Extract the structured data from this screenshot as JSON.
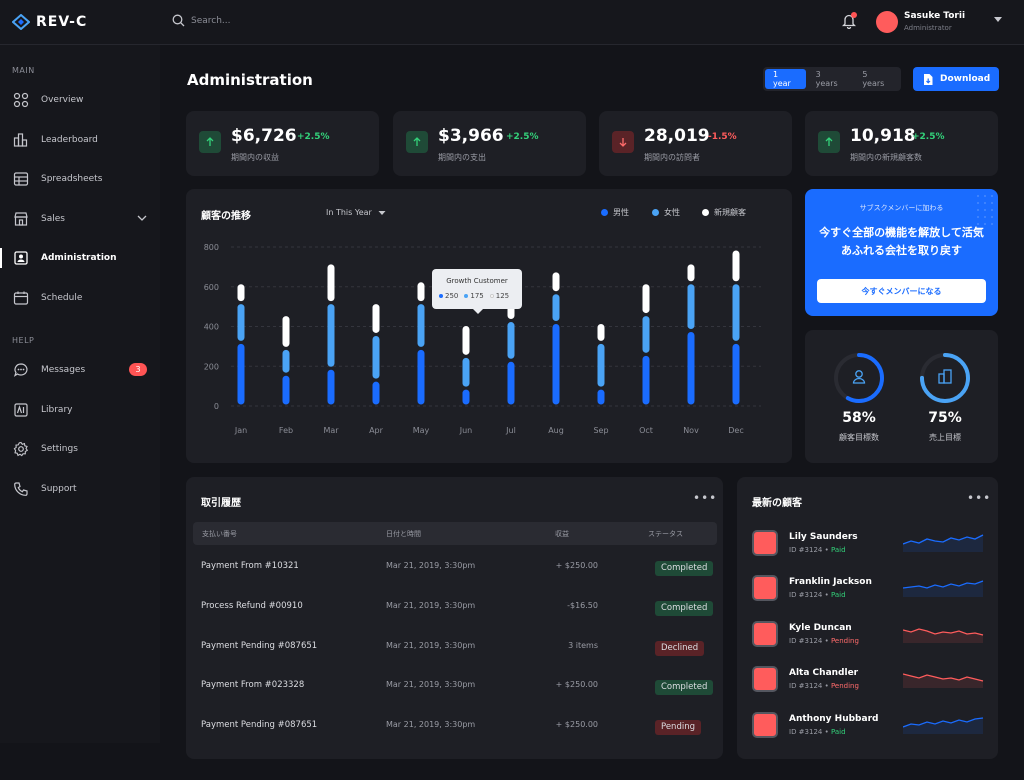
{
  "app": {
    "name": "REV-C"
  },
  "search": {
    "placeholder": "Search..."
  },
  "user": {
    "name": "Sasuke Torii",
    "role": "Administrator"
  },
  "sidebar": {
    "main_label": "MAIN",
    "help_label": "HELP",
    "items": [
      {
        "label": "Overview",
        "icon": "overview-icon"
      },
      {
        "label": "Leaderboard",
        "icon": "leaderboard-icon"
      },
      {
        "label": "Spreadsheets",
        "icon": "spreadsheet-icon"
      },
      {
        "label": "Sales",
        "icon": "shop-icon"
      },
      {
        "label": "Administration",
        "icon": "admin-icon"
      },
      {
        "label": "Schedule",
        "icon": "calendar-icon"
      }
    ],
    "help_items": [
      {
        "label": "Messages",
        "icon": "message-icon",
        "badge": "3"
      },
      {
        "label": "Library",
        "icon": "library-icon"
      },
      {
        "label": "Settings",
        "icon": "gear-icon"
      },
      {
        "label": "Support",
        "icon": "phone-icon"
      }
    ]
  },
  "page": {
    "title": "Administration",
    "download_label": "Download"
  },
  "ranges": [
    "1 year",
    "3 years",
    "5 years"
  ],
  "stats": [
    {
      "value": "$6,726",
      "delta": "+2.5%",
      "label": "期間内の収益",
      "trend": "up"
    },
    {
      "value": "$3,966",
      "delta": "+2.5%",
      "label": "期間内の支出",
      "trend": "up"
    },
    {
      "value": "28,019",
      "delta": "-1.5%",
      "label": "期間内の訪問者",
      "trend": "down"
    },
    {
      "value": "10,918",
      "delta": "+2.5%",
      "label": "期間内の新規顧客数",
      "trend": "up"
    }
  ],
  "chart_title": "顧客の推移",
  "chart_filter": "In This Year",
  "tooltip": {
    "title": "Growth Customer",
    "v1": "250",
    "v2": "175",
    "v3": "125"
  },
  "chart_data": {
    "type": "bar",
    "stacked": true,
    "categories": [
      "Jan",
      "Feb",
      "Mar",
      "Apr",
      "May",
      "Jun",
      "Jul",
      "Aug",
      "Sep",
      "Oct",
      "Nov",
      "Dec"
    ],
    "series": [
      {
        "name": "男性",
        "color": "#1a6cff",
        "values": [
          320,
          160,
          190,
          130,
          290,
          90,
          230,
          420,
          90,
          260,
          380,
          320
        ]
      },
      {
        "name": "女性",
        "color": "#4aa3f5",
        "values": [
          200,
          130,
          330,
          230,
          230,
          160,
          200,
          150,
          230,
          200,
          240,
          300
        ]
      },
      {
        "name": "新規顧客",
        "color": "#ffffff",
        "values": [
          100,
          170,
          200,
          160,
          110,
          160,
          110,
          110,
          100,
          160,
          100,
          170
        ]
      }
    ],
    "yticks": [
      0,
      200,
      400,
      600,
      800
    ],
    "ylim": [
      0,
      800
    ],
    "grid": true,
    "legend": "top-right"
  },
  "promo": {
    "sub": "サブスクメンバーに加わる",
    "head": "今すぐ全部の機能を解放して活気あふれる会社を取り戻す",
    "button": "今すぐメンバーになる"
  },
  "goals": [
    {
      "pct": "58%",
      "label": "顧客目標数",
      "icon": "user-icon",
      "value": 0.58
    },
    {
      "pct": "75%",
      "label": "売上目標",
      "icon": "building-icon",
      "value": 0.75
    }
  ],
  "transactions": {
    "title": "取引履歴",
    "columns": [
      "支払い番号",
      "日付と時間",
      "収益",
      "ステータス"
    ],
    "rows": [
      {
        "name": "Payment From #10321",
        "date": "Mar 21, 2019, 3:30pm",
        "amount": "+ $250.00",
        "status": "Completed",
        "kind": "completed"
      },
      {
        "name": "Process Refund #00910",
        "date": "Mar 21, 2019, 3:30pm",
        "amount": "-$16.50",
        "status": "Completed",
        "kind": "completed"
      },
      {
        "name": "Payment Pending #087651",
        "date": "Mar 21, 2019, 3:30pm",
        "amount": "3 items",
        "status": "Declined",
        "kind": "declined"
      },
      {
        "name": "Payment From #023328",
        "date": "Mar 21, 2019, 3:30pm",
        "amount": "+ $250.00",
        "status": "Completed",
        "kind": "completed"
      },
      {
        "name": "Payment Pending #087651",
        "date": "Mar 21, 2019, 3:30pm",
        "amount": "+ $250.00",
        "status": "Pending",
        "kind": "pending"
      }
    ]
  },
  "customers": {
    "title": "最新の顧客",
    "rows": [
      {
        "name": "Lily Saunders",
        "id": "ID #3124",
        "status": "Paid",
        "kind": "paid"
      },
      {
        "name": "Franklin Jackson",
        "id": "ID #3124",
        "status": "Paid",
        "kind": "paid"
      },
      {
        "name": "Kyle Duncan",
        "id": "ID #3124",
        "status": "Pending",
        "kind": "pending"
      },
      {
        "name": "Alta Chandler",
        "id": "ID #3124",
        "status": "Pending",
        "kind": "pending"
      },
      {
        "name": "Anthony Hubbard",
        "id": "ID #3124",
        "status": "Paid",
        "kind": "paid"
      }
    ]
  },
  "colors": {
    "accent": "#1a6cff",
    "positive": "#33d17a",
    "negative": "#ff5c5c"
  }
}
